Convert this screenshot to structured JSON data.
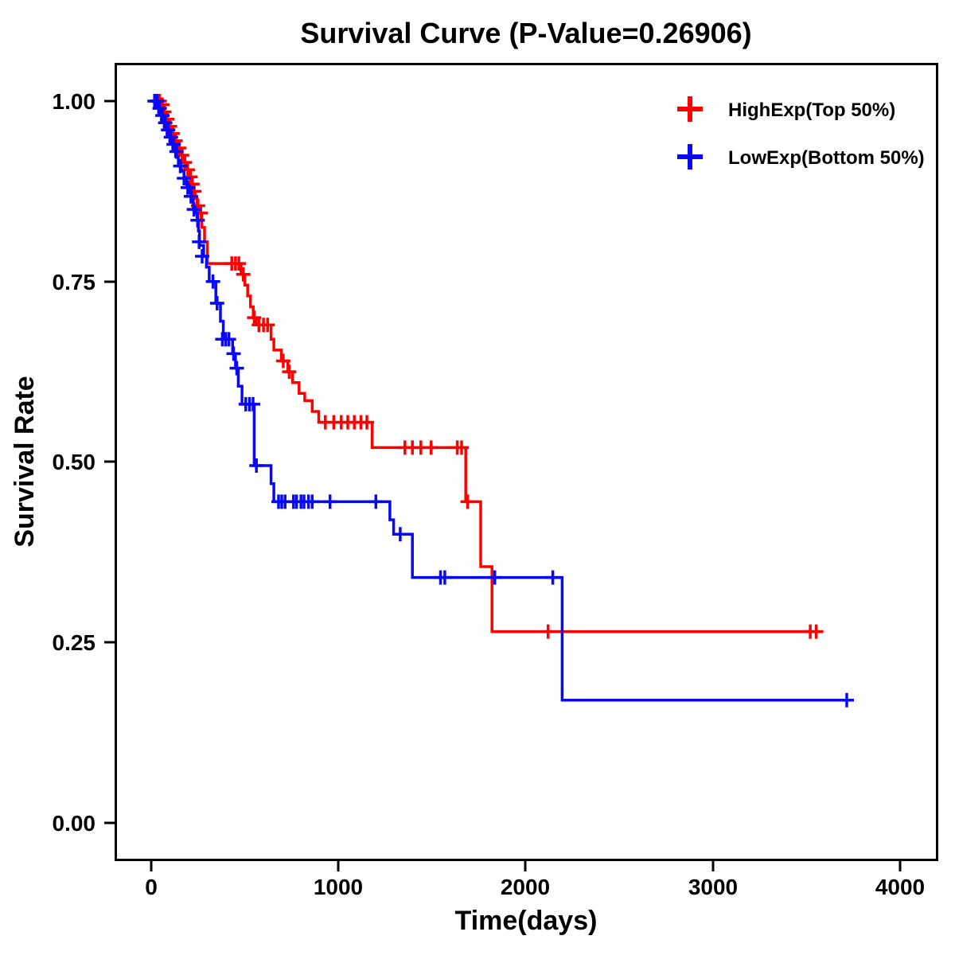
{
  "chart_data": {
    "type": "line",
    "subtype": "kaplan-meier-step-survival",
    "title": "Survival Curve (P-Value=0.26906)",
    "p_value": "0.26906",
    "xlabel": "Time(days)",
    "ylabel": "Survival Rate",
    "xlim": [
      0,
      4000
    ],
    "ylim": [
      0,
      1
    ],
    "x_tick_values": [
      0,
      1000,
      2000,
      3000,
      4000
    ],
    "x_tick_labels": [
      "0",
      "1000",
      "2000",
      "3000",
      "4000"
    ],
    "y_tick_values": [
      0,
      0.25,
      0.5,
      0.75,
      1.0
    ],
    "y_tick_labels": [
      "0.00",
      "0.25",
      "0.50",
      "0.75",
      "1.00"
    ],
    "grid": false,
    "legend_position": "top-right",
    "censor_marker": "plus",
    "series": [
      {
        "name": "HighExp(Top 50%)",
        "color": "#FF0000",
        "end_time": 3560,
        "steps": [
          [
            0,
            1.0
          ],
          [
            30,
            0.995
          ],
          [
            55,
            0.985
          ],
          [
            75,
            0.975
          ],
          [
            95,
            0.965
          ],
          [
            110,
            0.955
          ],
          [
            125,
            0.945
          ],
          [
            140,
            0.935
          ],
          [
            155,
            0.925
          ],
          [
            170,
            0.915
          ],
          [
            185,
            0.905
          ],
          [
            200,
            0.895
          ],
          [
            215,
            0.885
          ],
          [
            225,
            0.875
          ],
          [
            235,
            0.865
          ],
          [
            245,
            0.855
          ],
          [
            255,
            0.845
          ],
          [
            270,
            0.825
          ],
          [
            285,
            0.805
          ],
          [
            300,
            0.775
          ],
          [
            480,
            0.76
          ],
          [
            500,
            0.745
          ],
          [
            515,
            0.73
          ],
          [
            530,
            0.715
          ],
          [
            545,
            0.7
          ],
          [
            560,
            0.69
          ],
          [
            640,
            0.67
          ],
          [
            655,
            0.655
          ],
          [
            695,
            0.64
          ],
          [
            730,
            0.625
          ],
          [
            755,
            0.61
          ],
          [
            790,
            0.595
          ],
          [
            820,
            0.585
          ],
          [
            860,
            0.57
          ],
          [
            895,
            0.555
          ],
          [
            1180,
            0.52
          ],
          [
            1680,
            0.445
          ],
          [
            1760,
            0.355
          ],
          [
            1820,
            0.265
          ]
        ],
        "censors": [
          [
            25,
            1.0
          ],
          [
            45,
            1.0
          ],
          [
            60,
            0.995
          ],
          [
            70,
            0.985
          ],
          [
            85,
            0.975
          ],
          [
            100,
            0.965
          ],
          [
            115,
            0.955
          ],
          [
            130,
            0.945
          ],
          [
            150,
            0.935
          ],
          [
            165,
            0.925
          ],
          [
            180,
            0.915
          ],
          [
            195,
            0.905
          ],
          [
            210,
            0.895
          ],
          [
            220,
            0.885
          ],
          [
            230,
            0.875
          ],
          [
            250,
            0.855
          ],
          [
            265,
            0.845
          ],
          [
            430,
            0.775
          ],
          [
            450,
            0.775
          ],
          [
            468,
            0.775
          ],
          [
            492,
            0.76
          ],
          [
            550,
            0.7
          ],
          [
            575,
            0.69
          ],
          [
            600,
            0.69
          ],
          [
            622,
            0.69
          ],
          [
            705,
            0.64
          ],
          [
            737,
            0.625
          ],
          [
            930,
            0.555
          ],
          [
            975,
            0.555
          ],
          [
            1015,
            0.555
          ],
          [
            1050,
            0.555
          ],
          [
            1085,
            0.555
          ],
          [
            1120,
            0.555
          ],
          [
            1152,
            0.555
          ],
          [
            1355,
            0.52
          ],
          [
            1395,
            0.52
          ],
          [
            1440,
            0.52
          ],
          [
            1495,
            0.52
          ],
          [
            1635,
            0.52
          ],
          [
            1658,
            0.52
          ],
          [
            1690,
            0.445
          ],
          [
            2120,
            0.265
          ],
          [
            3520,
            0.265
          ],
          [
            3552,
            0.265
          ]
        ]
      },
      {
        "name": "LowExp(Bottom 50%)",
        "color": "#0808F5",
        "end_time": 3720,
        "steps": [
          [
            0,
            1.0
          ],
          [
            20,
            0.993
          ],
          [
            40,
            0.983
          ],
          [
            55,
            0.973
          ],
          [
            70,
            0.963
          ],
          [
            85,
            0.953
          ],
          [
            100,
            0.943
          ],
          [
            115,
            0.933
          ],
          [
            130,
            0.923
          ],
          [
            145,
            0.913
          ],
          [
            160,
            0.903
          ],
          [
            175,
            0.893
          ],
          [
            190,
            0.883
          ],
          [
            205,
            0.873
          ],
          [
            215,
            0.863
          ],
          [
            225,
            0.853
          ],
          [
            235,
            0.845
          ],
          [
            245,
            0.835
          ],
          [
            252,
            0.82
          ],
          [
            258,
            0.8
          ],
          [
            280,
            0.785
          ],
          [
            295,
            0.77
          ],
          [
            310,
            0.75
          ],
          [
            345,
            0.72
          ],
          [
            370,
            0.695
          ],
          [
            385,
            0.67
          ],
          [
            435,
            0.65
          ],
          [
            450,
            0.63
          ],
          [
            465,
            0.605
          ],
          [
            485,
            0.58
          ],
          [
            550,
            0.495
          ],
          [
            640,
            0.47
          ],
          [
            655,
            0.445
          ],
          [
            1275,
            0.42
          ],
          [
            1295,
            0.4
          ],
          [
            1395,
            0.34
          ],
          [
            2195,
            0.17
          ]
        ],
        "censors": [
          [
            18,
            1.0
          ],
          [
            32,
            1.0
          ],
          [
            45,
            0.99
          ],
          [
            60,
            0.98
          ],
          [
            75,
            0.97
          ],
          [
            90,
            0.96
          ],
          [
            105,
            0.95
          ],
          [
            120,
            0.94
          ],
          [
            135,
            0.93
          ],
          [
            155,
            0.91
          ],
          [
            175,
            0.893
          ],
          [
            195,
            0.88
          ],
          [
            212,
            0.868
          ],
          [
            228,
            0.85
          ],
          [
            248,
            0.835
          ],
          [
            256,
            0.805
          ],
          [
            272,
            0.785
          ],
          [
            330,
            0.75
          ],
          [
            352,
            0.72
          ],
          [
            380,
            0.67
          ],
          [
            398,
            0.67
          ],
          [
            415,
            0.67
          ],
          [
            440,
            0.65
          ],
          [
            457,
            0.63
          ],
          [
            505,
            0.58
          ],
          [
            525,
            0.58
          ],
          [
            544,
            0.58
          ],
          [
            562,
            0.495
          ],
          [
            680,
            0.445
          ],
          [
            697,
            0.445
          ],
          [
            715,
            0.445
          ],
          [
            760,
            0.445
          ],
          [
            776,
            0.445
          ],
          [
            800,
            0.445
          ],
          [
            816,
            0.445
          ],
          [
            840,
            0.445
          ],
          [
            860,
            0.445
          ],
          [
            955,
            0.445
          ],
          [
            1200,
            0.445
          ],
          [
            1330,
            0.4
          ],
          [
            1545,
            0.34
          ],
          [
            1568,
            0.34
          ],
          [
            1835,
            0.34
          ],
          [
            2145,
            0.34
          ],
          [
            3715,
            0.17
          ]
        ]
      }
    ]
  }
}
